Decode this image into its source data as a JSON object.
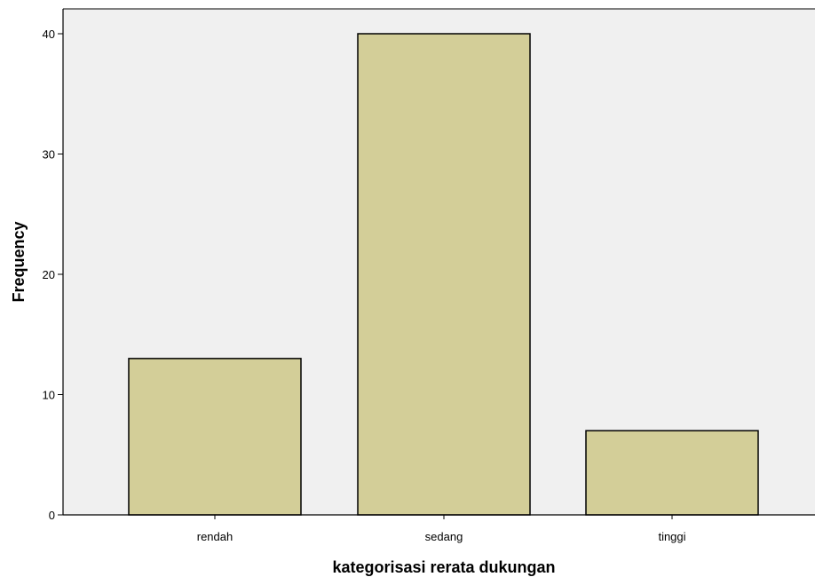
{
  "chart_data": {
    "type": "bar",
    "categories": [
      "rendah",
      "sedang",
      "tinggi"
    ],
    "values": [
      13,
      40,
      7
    ],
    "xlabel": "kategorisasi rerata dukungan",
    "ylabel": "Frequency",
    "ylim": [
      0,
      42
    ],
    "yticks": [
      0,
      10,
      20,
      30,
      40
    ],
    "colors": {
      "bar_fill": "#d3ce98",
      "bar_stroke": "#000000",
      "plot_background": "#f0f0f0"
    },
    "grid": false,
    "legend": "none"
  }
}
